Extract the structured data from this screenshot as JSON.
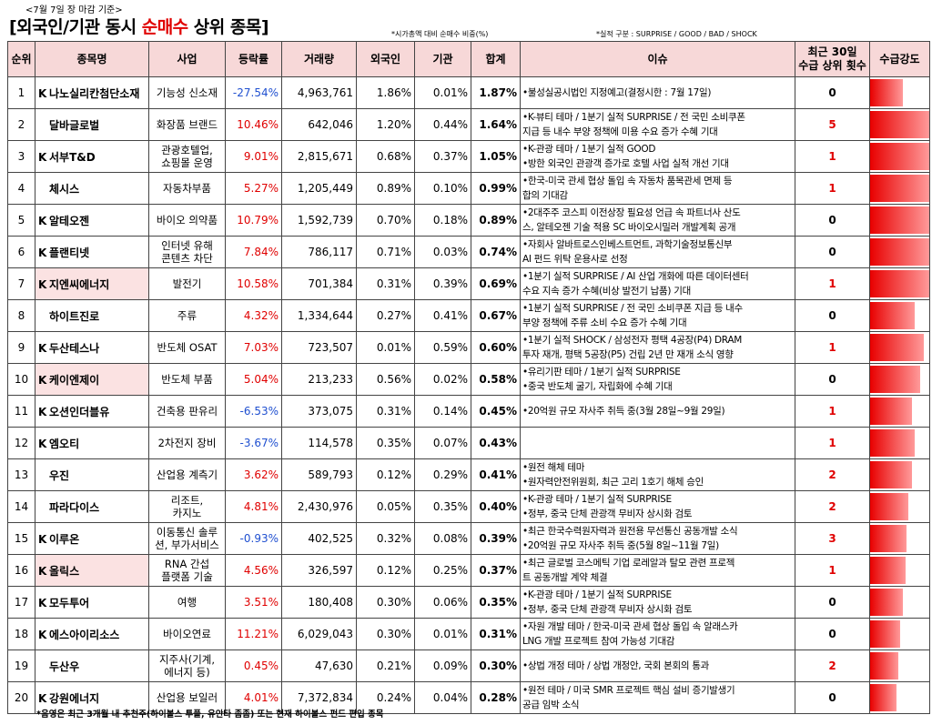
{
  "header": {
    "date_note": "<7월 7일 장 마감 기준>",
    "title_pre": "[외국인/기관 동시 ",
    "title_red": "순매수",
    "title_post": " 상위 종목]",
    "note_ratio": "*시가총액 대비 순매수 비중(%)",
    "note_perf": "*실적 구분 : SURPRISE / GOOD / BAD / SHOCK"
  },
  "columns": {
    "rank": "순위",
    "name": "종목명",
    "business": "사업",
    "change": "등락률",
    "volume": "거래량",
    "foreign": "외국인",
    "institution": "기관",
    "total": "합계",
    "issue": "이슈",
    "count_line1": "최근 30일",
    "count_line2": "수급 상위 횟수",
    "strength": "수급강도"
  },
  "rows": [
    {
      "rank": "1",
      "k": "K",
      "name": "나노실리칸첨단소재",
      "hl": false,
      "biz": "기능성 신소재",
      "change": "-27.54%",
      "dir": "neg",
      "volume": "4,963,761",
      "foreign": "1.86%",
      "inst": "0.01%",
      "total": "1.87%",
      "issue": [
        "•불성실공시법인 지정예고(결정시한 : 7월 17일)"
      ],
      "count": "0",
      "strength": 0.55
    },
    {
      "rank": "2",
      "k": "",
      "name": "달바글로벌",
      "hl": false,
      "biz": "화장품 브랜드",
      "change": "10.46%",
      "dir": "pos",
      "volume": "642,046",
      "foreign": "1.20%",
      "inst": "0.44%",
      "total": "1.64%",
      "issue": [
        "•K-뷰티 테마 / 1분기 실적 SURPRISE / 전 국민 소비쿠폰",
        "지급 등 내수 부양 정책에 미용 수요 증가 수혜 기대"
      ],
      "count": "5",
      "strength": 1.0
    },
    {
      "rank": "3",
      "k": "K",
      "name": "서부T&D",
      "hl": false,
      "biz": "관광호텔업,\n쇼핑몰 운영",
      "change": "9.01%",
      "dir": "pos",
      "volume": "2,815,671",
      "foreign": "0.68%",
      "inst": "0.37%",
      "total": "1.05%",
      "issue": [
        "•K-관광 테마 / 1분기 실적 GOOD",
        "•방한 외국인 관광객 증가로 호텔 사업 실적 개선 기대"
      ],
      "count": "1",
      "strength": 1.0
    },
    {
      "rank": "4",
      "k": "",
      "name": "체시스",
      "hl": false,
      "biz": "자동차부품",
      "change": "5.27%",
      "dir": "pos",
      "volume": "1,205,449",
      "foreign": "0.89%",
      "inst": "0.10%",
      "total": "0.99%",
      "issue": [
        "•한국-미국 관세 협상 돌입 속 자동차 품목관세 면제 등",
        "합의 기대감"
      ],
      "count": "1",
      "strength": 1.0
    },
    {
      "rank": "5",
      "k": "K",
      "name": "알테오젠",
      "hl": false,
      "biz": "바이오 의약품",
      "change": "10.79%",
      "dir": "pos",
      "volume": "1,592,739",
      "foreign": "0.70%",
      "inst": "0.18%",
      "total": "0.89%",
      "issue": [
        "•2대주주 코스피 이전상장 필요성 언급 속 파트너사 산도",
        "스, 알테오젠 기술 적용 SC 바이오시밀러 개발계획 공개"
      ],
      "count": "0",
      "strength": 1.0
    },
    {
      "rank": "6",
      "k": "K",
      "name": "플랜티넷",
      "hl": false,
      "biz": "인터넷 유해\n콘텐츠 차단",
      "change": "7.84%",
      "dir": "pos",
      "volume": "786,117",
      "foreign": "0.71%",
      "inst": "0.03%",
      "total": "0.74%",
      "issue": [
        "•자회사 알바트로스인베스트먼트, 과학기술정보통신부",
        "AI 펀드 위탁 운용사로 선정"
      ],
      "count": "0",
      "strength": 1.0
    },
    {
      "rank": "7",
      "k": "K",
      "name": "지엔씨에너지",
      "hl": true,
      "biz": "발전기",
      "change": "10.58%",
      "dir": "pos",
      "volume": "701,384",
      "foreign": "0.31%",
      "inst": "0.39%",
      "total": "0.69%",
      "issue": [
        "•1분기 실적 SURPRISE / AI 산업 개화에 따른 데이터센터",
        "수요 지속 증가 수혜(비상 발전기 납품) 기대"
      ],
      "count": "1",
      "strength": 1.0
    },
    {
      "rank": "8",
      "k": "",
      "name": "하이트진로",
      "hl": false,
      "biz": "주류",
      "change": "4.32%",
      "dir": "pos",
      "volume": "1,334,644",
      "foreign": "0.27%",
      "inst": "0.41%",
      "total": "0.67%",
      "issue": [
        "•1분기 실적 SURPRISE / 전 국민 소비쿠폰 지급 등 내수",
        "부양 정책에 주류 소비 수요 증가 수혜 기대"
      ],
      "count": "0",
      "strength": 0.75
    },
    {
      "rank": "9",
      "k": "K",
      "name": "두산테스나",
      "hl": false,
      "biz": "반도체 OSAT",
      "change": "7.03%",
      "dir": "pos",
      "volume": "723,507",
      "foreign": "0.01%",
      "inst": "0.59%",
      "total": "0.60%",
      "issue": [
        "•1분기 실적 SHOCK / 삼성전자 평택 4공장(P4) DRAM",
        "투자 재개, 평택 5공장(P5) 건립 2년 만 재개 소식 영향"
      ],
      "count": "1",
      "strength": 0.9
    },
    {
      "rank": "10",
      "k": "K",
      "name": "케이엔제이",
      "hl": true,
      "biz": "반도체 부품",
      "change": "5.04%",
      "dir": "pos",
      "volume": "213,233",
      "foreign": "0.56%",
      "inst": "0.02%",
      "total": "0.58%",
      "issue": [
        "•유리기판 테마 / 1분기 실적 SURPRISE",
        "•중국 반도체 굴기, 자립화에 수혜 기대"
      ],
      "count": "0",
      "strength": 0.85
    },
    {
      "rank": "11",
      "k": "K",
      "name": "오션인더블유",
      "hl": false,
      "biz": "건축용 판유리",
      "change": "-6.53%",
      "dir": "neg",
      "volume": "373,075",
      "foreign": "0.31%",
      "inst": "0.14%",
      "total": "0.45%",
      "issue": [
        "•20억원 규모 자사주 취득 중(3월 28일~9월 29일)"
      ],
      "count": "1",
      "strength": 0.7
    },
    {
      "rank": "12",
      "k": "K",
      "name": "엠오티",
      "hl": false,
      "biz": "2차전지 장비",
      "change": "-3.67%",
      "dir": "neg",
      "volume": "114,578",
      "foreign": "0.35%",
      "inst": "0.07%",
      "total": "0.43%",
      "issue": [],
      "count": "1",
      "strength": 0.75
    },
    {
      "rank": "13",
      "k": "",
      "name": "우진",
      "hl": false,
      "biz": "산업용 계측기",
      "change": "3.62%",
      "dir": "pos",
      "volume": "589,793",
      "foreign": "0.12%",
      "inst": "0.29%",
      "total": "0.41%",
      "issue": [
        "•원전 해체 테마",
        "•원자력안전위원회, 최근 고리 1호기 해체 승인"
      ],
      "count": "2",
      "strength": 0.7
    },
    {
      "rank": "14",
      "k": "",
      "name": "파라다이스",
      "hl": false,
      "biz": "리조트,\n카지노",
      "change": "4.81%",
      "dir": "pos",
      "volume": "2,430,976",
      "foreign": "0.05%",
      "inst": "0.35%",
      "total": "0.40%",
      "issue": [
        "•K-관광 테마 / 1분기 실적 SURPRISE",
        "•정부, 중국 단체 관광객 무비자 상시화 검토"
      ],
      "count": "2",
      "strength": 0.65
    },
    {
      "rank": "15",
      "k": "K",
      "name": "이루온",
      "hl": false,
      "biz": "이동통신 솔루\n션, 부가서비스",
      "change": "-0.93%",
      "dir": "neg",
      "volume": "402,525",
      "foreign": "0.32%",
      "inst": "0.08%",
      "total": "0.39%",
      "issue": [
        "•최근 한국수력원자력과 원전용 무선통신 공동개발 소식",
        "•20억원 규모 자사주 취득 중(5월 8일~11월 7일)"
      ],
      "count": "3",
      "strength": 0.62
    },
    {
      "rank": "16",
      "k": "K",
      "name": "올릭스",
      "hl": true,
      "biz": "RNA 간섭\n플랫폼 기술",
      "change": "4.56%",
      "dir": "pos",
      "volume": "326,597",
      "foreign": "0.12%",
      "inst": "0.25%",
      "total": "0.37%",
      "issue": [
        "•최근 글로벌 코스메틱 기업 로레알과 탈모 관련 프로젝",
        "트 공동개발 계약 체결"
      ],
      "count": "1",
      "strength": 0.6
    },
    {
      "rank": "17",
      "k": "K",
      "name": "모두투어",
      "hl": false,
      "biz": "여행",
      "change": "3.51%",
      "dir": "pos",
      "volume": "180,408",
      "foreign": "0.30%",
      "inst": "0.06%",
      "total": "0.35%",
      "issue": [
        "•K-관광 테마 / 1분기 실적 SURPRISE",
        "•정부, 중국 단체 관광객 무비자 상시화 검토"
      ],
      "count": "0",
      "strength": 0.55
    },
    {
      "rank": "18",
      "k": "K",
      "name": "에스아이리소스",
      "hl": false,
      "biz": "바이오연료",
      "change": "11.21%",
      "dir": "pos",
      "volume": "6,029,043",
      "foreign": "0.30%",
      "inst": "0.01%",
      "total": "0.31%",
      "issue": [
        "•자원 개발 테마 / 한국-미국 관세 협상 돌입 속 알래스카",
        "LNG 개발 프로젝트 참여 가능성 기대감"
      ],
      "count": "0",
      "strength": 0.5
    },
    {
      "rank": "19",
      "k": "",
      "name": "두산우",
      "hl": false,
      "biz": "지주사(기계,\n에너지 등)",
      "change": "0.45%",
      "dir": "pos",
      "volume": "47,630",
      "foreign": "0.21%",
      "inst": "0.09%",
      "total": "0.30%",
      "issue": [
        "•상법 개정 테마 / 상법 개정안, 국회 본회의 통과"
      ],
      "count": "2",
      "strength": 0.48
    },
    {
      "rank": "20",
      "k": "K",
      "name": "강원에너지",
      "hl": false,
      "biz": "산업용 보일러",
      "change": "4.01%",
      "dir": "pos",
      "volume": "7,372,834",
      "foreign": "0.24%",
      "inst": "0.04%",
      "total": "0.28%",
      "issue": [
        "•원전 테마 / 미국 SMR 프로젝트 핵심 설비 증기발생기",
        "공급 임박 소식"
      ],
      "count": "0",
      "strength": 0.45
    }
  ],
  "footnote": "*음영은 최근 3개월 내 추천주(하이볼스 투플, 유안타 좀좀) 또는 현재 하이볼스 펀드 편입 종목"
}
